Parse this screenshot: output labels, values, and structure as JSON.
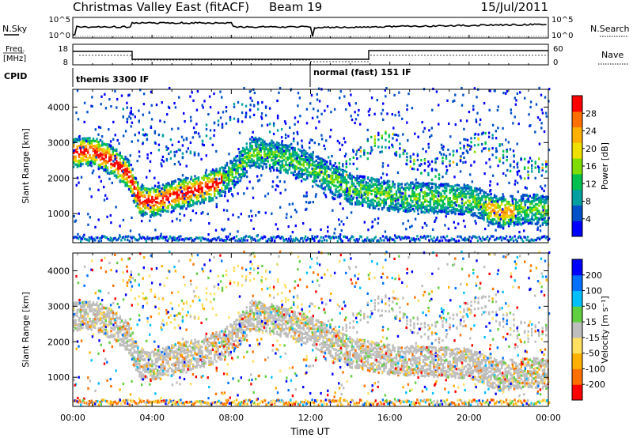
{
  "header": {
    "title": "Christmas Valley East (fitACF)",
    "beam": "Beam 19",
    "date": "15/Jul/2011"
  },
  "top_panels": {
    "nsky": {
      "label": "N.Sky",
      "ticks": [
        "10^5",
        "10^0"
      ]
    },
    "nsearch": {
      "label": "N.Search"
    },
    "freq": {
      "label_line1": "Freq.",
      "label_line2": "[MHz]",
      "ticks": [
        "18",
        "8"
      ]
    },
    "nave": {
      "label": "Nave",
      "ticks": [
        "60",
        "0"
      ]
    },
    "cpid": {
      "label": "CPID",
      "segments": [
        {
          "start_hour": 0,
          "end_hour": 12,
          "text": "themis 3300 IF"
        },
        {
          "start_hour": 12,
          "end_hour": 24,
          "text": "normal (fast) 151 IF"
        }
      ]
    }
  },
  "colors": {
    "power_scale": [
      "#0000ff",
      "#0050c8",
      "#00a0a0",
      "#00c050",
      "#80dd00",
      "#f0e000",
      "#ffb000",
      "#ff7000",
      "#ff0000"
    ],
    "velocity_scale": [
      "#0000ff",
      "#0070ff",
      "#00c0ff",
      "#60d040",
      "#bebebe",
      "#ffe060",
      "#ffb000",
      "#ff7000",
      "#ff0000"
    ]
  },
  "chart_data": [
    {
      "type": "heatmap",
      "name": "power",
      "ylabel": "Slant Range [km]",
      "xlabel": "",
      "xlim": [
        0,
        24
      ],
      "ylim": [
        180,
        4500
      ],
      "yticks": [
        "1000",
        "2000",
        "3000",
        "4000"
      ],
      "colorbar": {
        "label": "Power [dB]",
        "range": [
          0,
          30
        ],
        "ticks": [
          "4",
          "8",
          "12",
          "16",
          "20",
          "24",
          "28"
        ]
      },
      "echo_band_centerline_km": [
        {
          "hour": 0.0,
          "range": 2700
        },
        {
          "hour": 1.0,
          "range": 2700
        },
        {
          "hour": 2.0,
          "range": 2450
        },
        {
          "hour": 2.8,
          "range": 2050
        },
        {
          "hour": 3.3,
          "range": 1350
        },
        {
          "hour": 4.0,
          "range": 1300
        },
        {
          "hour": 5.0,
          "range": 1450
        },
        {
          "hour": 6.0,
          "range": 1600
        },
        {
          "hour": 7.0,
          "range": 1750
        },
        {
          "hour": 8.0,
          "range": 2050
        },
        {
          "hour": 9.0,
          "range": 2700
        },
        {
          "hour": 10.0,
          "range": 2600
        },
        {
          "hour": 11.0,
          "range": 2450
        },
        {
          "hour": 12.0,
          "range": 2250
        },
        {
          "hour": 13.0,
          "range": 1950
        },
        {
          "hour": 14.0,
          "range": 1650
        },
        {
          "hour": 16.0,
          "range": 1450
        },
        {
          "hour": 18.0,
          "range": 1400
        },
        {
          "hour": 20.0,
          "range": 1350
        },
        {
          "hour": 21.5,
          "range": 1000
        },
        {
          "hour": 23.0,
          "range": 1100
        },
        {
          "hour": 24.0,
          "range": 1050
        }
      ]
    },
    {
      "type": "heatmap",
      "name": "velocity",
      "ylabel": "Slant Range [km]",
      "xlabel": "Time UT",
      "xlim": [
        0,
        24
      ],
      "ylim": [
        180,
        4500
      ],
      "xticks": [
        "00:00",
        "04:00",
        "08:00",
        "12:00",
        "16:00",
        "20:00",
        "00:00"
      ],
      "yticks": [
        "1000",
        "2000",
        "3000",
        "4000"
      ],
      "colorbar": {
        "label": "Velocity [m s⁻¹]",
        "ticks": [
          "200",
          "100",
          "50",
          "15",
          "-15",
          "-50",
          "-100",
          "-200"
        ]
      }
    }
  ]
}
